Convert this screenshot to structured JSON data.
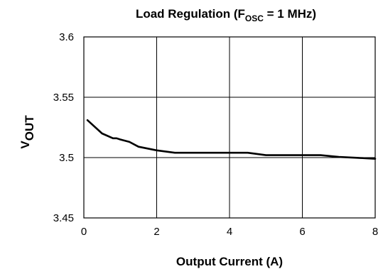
{
  "chart_data": {
    "type": "line",
    "title": {
      "prefix": "Load Regulation (F",
      "subscript": "OSC",
      "suffix": " = 1 MHz)"
    },
    "xlabel": "Output Current (A)",
    "ylabel": {
      "main": "V",
      "subscript": "OUT"
    },
    "xlim": [
      0,
      8
    ],
    "ylim": [
      3.45,
      3.6
    ],
    "x_ticks": [
      0,
      2,
      4,
      6,
      8
    ],
    "y_ticks": [
      3.45,
      3.5,
      3.55,
      3.6
    ],
    "x_tick_labels": [
      "0",
      "2",
      "4",
      "6",
      "8"
    ],
    "y_tick_labels": [
      "3.45",
      "3.5",
      "3.55",
      "3.6"
    ],
    "grid": true,
    "series": [
      {
        "color": "#000000",
        "x": [
          0.1,
          0.5,
          0.8,
          0.9,
          1.0,
          1.25,
          1.5,
          2.0,
          2.5,
          3.0,
          3.5,
          4.0,
          4.5,
          5.0,
          5.5,
          6.0,
          6.5,
          7.0,
          7.5,
          8.0
        ],
        "y": [
          3.531,
          3.52,
          3.516,
          3.516,
          3.515,
          3.513,
          3.509,
          3.506,
          3.504,
          3.504,
          3.504,
          3.504,
          3.504,
          3.502,
          3.502,
          3.502,
          3.502,
          3.5005,
          3.4998,
          3.499
        ]
      }
    ]
  }
}
